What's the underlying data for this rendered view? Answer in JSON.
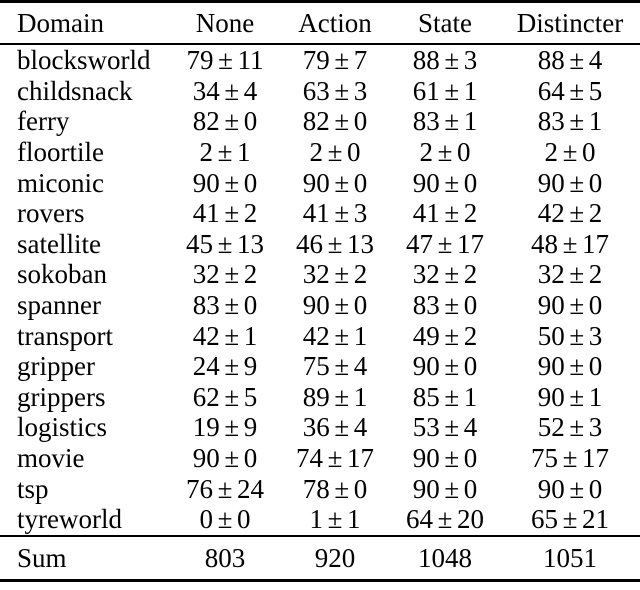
{
  "page": {
    "background": "#ffffff",
    "text_color": "#000000",
    "rule_color": "#000000"
  },
  "table": {
    "columns": [
      "Domain",
      "None",
      "Action",
      "State",
      "Distincter"
    ],
    "rows": [
      {
        "domain": "blocksworld",
        "values": [
          "79±11",
          "79±7",
          "88±3",
          "88±4"
        ]
      },
      {
        "domain": "childsnack",
        "values": [
          "34±4",
          "63±3",
          "61±1",
          "64±5"
        ]
      },
      {
        "domain": "ferry",
        "values": [
          "82±0",
          "82±0",
          "83±1",
          "83±1"
        ]
      },
      {
        "domain": "floortile",
        "values": [
          "2±1",
          "2±0",
          "2±0",
          "2±0"
        ]
      },
      {
        "domain": "miconic",
        "values": [
          "90±0",
          "90±0",
          "90±0",
          "90±0"
        ]
      },
      {
        "domain": "rovers",
        "values": [
          "41±2",
          "41±3",
          "41±2",
          "42±2"
        ]
      },
      {
        "domain": "satellite",
        "values": [
          "45±13",
          "46±13",
          "47±17",
          "48±17"
        ]
      },
      {
        "domain": "sokoban",
        "values": [
          "32±2",
          "32±2",
          "32±2",
          "32±2"
        ]
      },
      {
        "domain": "spanner",
        "values": [
          "83±0",
          "90±0",
          "83±0",
          "90±0"
        ]
      },
      {
        "domain": "transport",
        "values": [
          "42±1",
          "42±1",
          "49±2",
          "50±3"
        ]
      },
      {
        "domain": "gripper",
        "values": [
          "24±9",
          "75±4",
          "90±0",
          "90±0"
        ]
      },
      {
        "domain": "grippers",
        "values": [
          "62±5",
          "89±1",
          "85±1",
          "90±1"
        ]
      },
      {
        "domain": "logistics",
        "values": [
          "19±9",
          "36±4",
          "53±4",
          "52±3"
        ]
      },
      {
        "domain": "movie",
        "values": [
          "90±0",
          "74±17",
          "90±0",
          "75±17"
        ]
      },
      {
        "domain": "tsp",
        "values": [
          "76±24",
          "78±0",
          "90±0",
          "90±0"
        ]
      },
      {
        "domain": "tyreworld",
        "values": [
          "0±0",
          "1±1",
          "64±20",
          "65±21"
        ]
      }
    ],
    "sum": {
      "label": "Sum",
      "values": [
        "803",
        "920",
        "1048",
        "1051"
      ]
    }
  }
}
